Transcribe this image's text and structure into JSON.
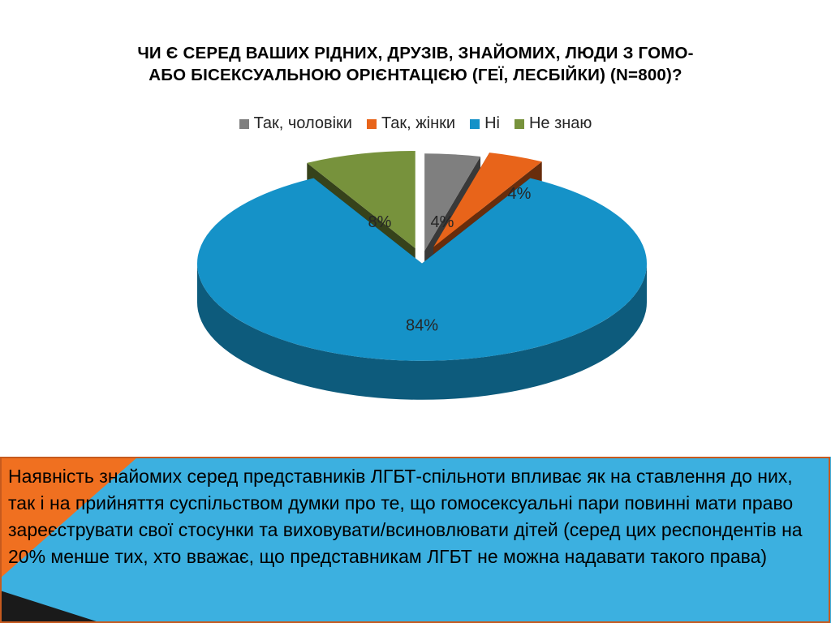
{
  "title": {
    "line1": "Чи є серед ваших рідних, друзів, знайомих, люди з гомо-",
    "line2": "або бісексуальною орієнтацією (геї, лесбійки) (N=800)?"
  },
  "chart_data": {
    "type": "pie",
    "title": "Чи є серед ваших рідних, друзів, знайомих, люди з гомо- або бісексуальною орієнтацією (геї, лесбійки) (N=800)?",
    "legend_position": "top",
    "categories": [
      "Так, чоловіки",
      "Так, жінки",
      "Ні",
      "Не знаю"
    ],
    "values": [
      4,
      4,
      84,
      8
    ],
    "labels": [
      "4%",
      "4%",
      "84%",
      "8%"
    ],
    "colors": [
      "#7f7f7f",
      "#e8641a",
      "#1592c8",
      "#77923c"
    ],
    "exploded": true,
    "style": "3d"
  },
  "banner": {
    "text": "Наявність знайомих серед представників ЛГБТ-спільноти впливає як на ставлення до них, так і на прийняття суспільством думки про те, що гомосексуальні пари повинні мати право зареєструвати свої стосунки та виховувати/всиновлювати дітей (серед цих респондентів на 20% менше тих, хто вважає, що представникам ЛГБТ не можна надавати такого права)",
    "colors": {
      "blue": "#3cb0e0",
      "orange": "#f07020",
      "dark": "#1a1a1a",
      "border": "#c65a1e"
    }
  }
}
